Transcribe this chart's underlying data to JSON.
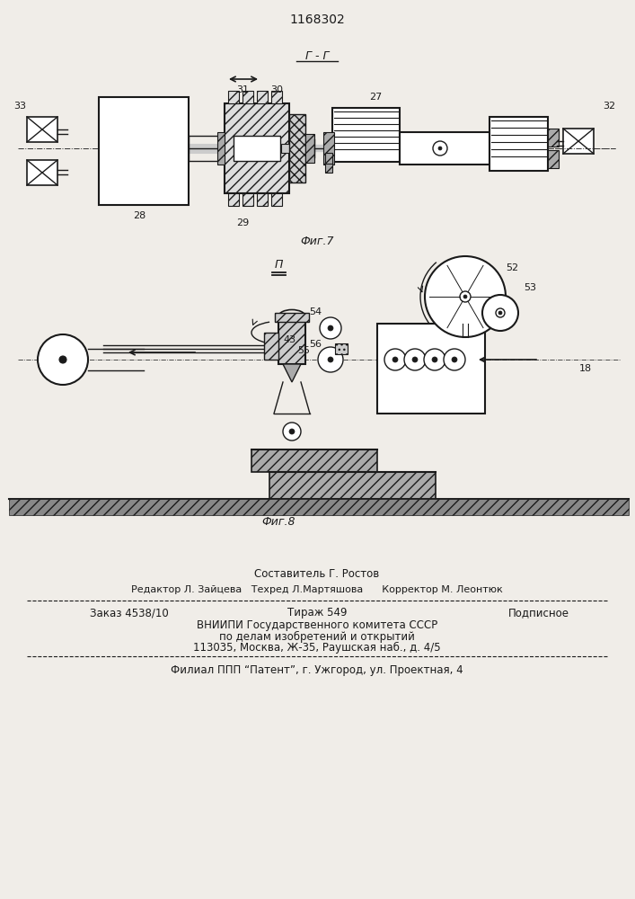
{
  "patent_number": "1168302",
  "fig7_label": "Фиг.7",
  "fig8_label": "Фиг.8",
  "section_label_fig7": "Г - Г",
  "section_label_fig8": "ПП",
  "bg_color": "#f0ede8",
  "line_color": "#1a1a1a",
  "footer_sestavitel": "Составитель Г. Ростов",
  "footer_redaktor": "Редактор Л. Зайцева   Техред Л.Мартяшова      Корректор М. Леонтюк",
  "footer_zakaz": "Заказ 4538/10",
  "footer_tirazh": "Тираж 549",
  "footer_podpisnoe": "Подписное",
  "footer_vniipи": "ВНИИПИ Государственного комитета СССР",
  "footer_po_delam": "по делам изобретений и открытий",
  "footer_address": "113035, Москва, Ж-35, Раушская наб., д. 4/5",
  "footer_filial": "Филиал ППП “Патент”, г. Ужгород, ул. Проектная, 4"
}
